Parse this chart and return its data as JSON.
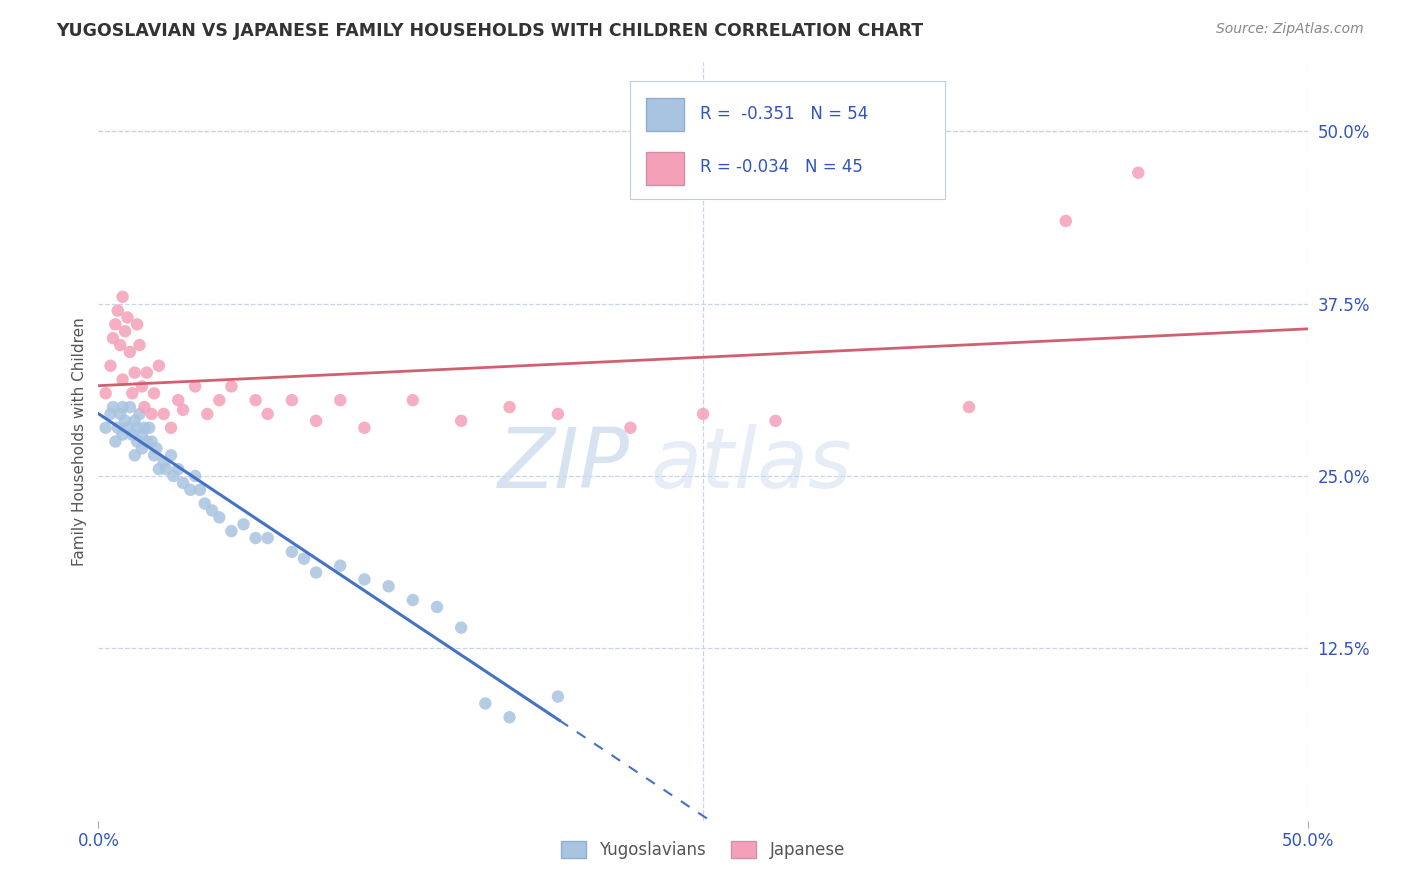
{
  "title": "YUGOSLAVIAN VS JAPANESE FAMILY HOUSEHOLDS WITH CHILDREN CORRELATION CHART",
  "source": "Source: ZipAtlas.com",
  "ylabel": "Family Households with Children",
  "xlim": [
    0.0,
    0.5
  ],
  "ylim": [
    0.0,
    0.55
  ],
  "xtick_positions": [
    0.0,
    0.5
  ],
  "xtick_labels": [
    "0.0%",
    "50.0%"
  ],
  "ytick_vals_right": [
    0.5,
    0.375,
    0.25,
    0.125
  ],
  "ytick_labels_right": [
    "50.0%",
    "37.5%",
    "25.0%",
    "12.5%"
  ],
  "legend_r1": "R =  -0.351",
  "legend_n1": "N = 54",
  "legend_r2": "R = -0.034",
  "legend_n2": "N = 45",
  "blue_color": "#a8c4e0",
  "pink_color": "#f4a0b8",
  "line_blue": "#4472c4",
  "line_pink": "#d06070",
  "grid_color": "#c8d4e8",
  "background_color": "#ffffff",
  "title_color": "#333333",
  "source_color": "#888888",
  "legend_text_color": "#3355bb",
  "axis_tick_color": "#3355bb",
  "yug_scatter": [
    [
      0.003,
      0.285
    ],
    [
      0.005,
      0.295
    ],
    [
      0.006,
      0.3
    ],
    [
      0.007,
      0.275
    ],
    [
      0.008,
      0.285
    ],
    [
      0.009,
      0.295
    ],
    [
      0.01,
      0.3
    ],
    [
      0.01,
      0.28
    ],
    [
      0.011,
      0.29
    ],
    [
      0.012,
      0.285
    ],
    [
      0.013,
      0.3
    ],
    [
      0.014,
      0.28
    ],
    [
      0.015,
      0.265
    ],
    [
      0.015,
      0.29
    ],
    [
      0.016,
      0.285
    ],
    [
      0.016,
      0.275
    ],
    [
      0.017,
      0.295
    ],
    [
      0.018,
      0.28
    ],
    [
      0.018,
      0.27
    ],
    [
      0.019,
      0.285
    ],
    [
      0.02,
      0.275
    ],
    [
      0.021,
      0.285
    ],
    [
      0.022,
      0.275
    ],
    [
      0.023,
      0.265
    ],
    [
      0.024,
      0.27
    ],
    [
      0.025,
      0.255
    ],
    [
      0.027,
      0.26
    ],
    [
      0.028,
      0.255
    ],
    [
      0.03,
      0.265
    ],
    [
      0.031,
      0.25
    ],
    [
      0.033,
      0.255
    ],
    [
      0.035,
      0.245
    ],
    [
      0.038,
      0.24
    ],
    [
      0.04,
      0.25
    ],
    [
      0.042,
      0.24
    ],
    [
      0.044,
      0.23
    ],
    [
      0.047,
      0.225
    ],
    [
      0.05,
      0.22
    ],
    [
      0.055,
      0.21
    ],
    [
      0.06,
      0.215
    ],
    [
      0.065,
      0.205
    ],
    [
      0.07,
      0.205
    ],
    [
      0.08,
      0.195
    ],
    [
      0.085,
      0.19
    ],
    [
      0.09,
      0.18
    ],
    [
      0.1,
      0.185
    ],
    [
      0.11,
      0.175
    ],
    [
      0.12,
      0.17
    ],
    [
      0.13,
      0.16
    ],
    [
      0.14,
      0.155
    ],
    [
      0.15,
      0.14
    ],
    [
      0.16,
      0.085
    ],
    [
      0.17,
      0.075
    ],
    [
      0.19,
      0.09
    ]
  ],
  "jpn_scatter": [
    [
      0.003,
      0.31
    ],
    [
      0.005,
      0.33
    ],
    [
      0.006,
      0.35
    ],
    [
      0.007,
      0.36
    ],
    [
      0.008,
      0.37
    ],
    [
      0.009,
      0.345
    ],
    [
      0.01,
      0.32
    ],
    [
      0.01,
      0.38
    ],
    [
      0.011,
      0.355
    ],
    [
      0.012,
      0.365
    ],
    [
      0.013,
      0.34
    ],
    [
      0.014,
      0.31
    ],
    [
      0.015,
      0.325
    ],
    [
      0.016,
      0.36
    ],
    [
      0.017,
      0.345
    ],
    [
      0.018,
      0.315
    ],
    [
      0.019,
      0.3
    ],
    [
      0.02,
      0.325
    ],
    [
      0.022,
      0.295
    ],
    [
      0.023,
      0.31
    ],
    [
      0.025,
      0.33
    ],
    [
      0.027,
      0.295
    ],
    [
      0.03,
      0.285
    ],
    [
      0.033,
      0.305
    ],
    [
      0.035,
      0.298
    ],
    [
      0.04,
      0.315
    ],
    [
      0.045,
      0.295
    ],
    [
      0.05,
      0.305
    ],
    [
      0.055,
      0.315
    ],
    [
      0.065,
      0.305
    ],
    [
      0.07,
      0.295
    ],
    [
      0.08,
      0.305
    ],
    [
      0.09,
      0.29
    ],
    [
      0.1,
      0.305
    ],
    [
      0.11,
      0.285
    ],
    [
      0.13,
      0.305
    ],
    [
      0.15,
      0.29
    ],
    [
      0.17,
      0.3
    ],
    [
      0.19,
      0.295
    ],
    [
      0.22,
      0.285
    ],
    [
      0.25,
      0.295
    ],
    [
      0.28,
      0.29
    ],
    [
      0.36,
      0.3
    ],
    [
      0.4,
      0.435
    ],
    [
      0.43,
      0.47
    ]
  ]
}
